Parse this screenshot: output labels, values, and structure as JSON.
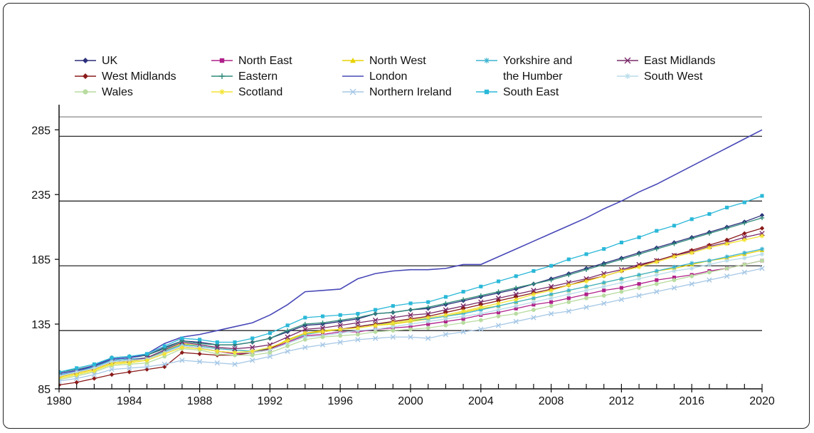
{
  "chart_data": {
    "type": "line",
    "title": "",
    "xlabel": "",
    "ylabel": "",
    "xlim": [
      1980,
      2020
    ],
    "ylim": [
      85,
      300
    ],
    "x_ticks": [
      1980,
      1984,
      1988,
      1992,
      1996,
      2000,
      2004,
      2008,
      2012,
      2016,
      2020
    ],
    "y_ticks": [
      85,
      135,
      185,
      235,
      285
    ],
    "x": [
      1980,
      1981,
      1982,
      1983,
      1984,
      1985,
      1986,
      1987,
      1988,
      1989,
      1990,
      1991,
      1992,
      1993,
      1994,
      1995,
      1996,
      1997,
      1998,
      1999,
      2000,
      2001,
      2002,
      2003,
      2004,
      2005,
      2006,
      2007,
      2008,
      2009,
      2010,
      2011,
      2012,
      2013,
      2014,
      2015,
      2016,
      2017,
      2018,
      2019,
      2020
    ],
    "reference_lines": [
      130,
      180,
      230,
      280,
      295
    ],
    "legend_position": "top",
    "series": [
      {
        "name": "UK",
        "color": "#2b2f7a",
        "marker": "diamond",
        "values": [
          97,
          99,
          102,
          108,
          109,
          111,
          117,
          122,
          121,
          119,
          119,
          121,
          124,
          129,
          134,
          135,
          137,
          139,
          143,
          144,
          146,
          147,
          150,
          153,
          156,
          159,
          162,
          166,
          170,
          174,
          178,
          182,
          186,
          190,
          194,
          198,
          202,
          206,
          210,
          214,
          219
        ]
      },
      {
        "name": "North East",
        "color": "#b0208a",
        "marker": "square",
        "values": [
          95,
          98,
          101,
          106,
          107,
          108,
          113,
          118,
          117,
          114,
          112,
          113,
          115,
          121,
          126,
          127,
          129,
          129,
          131,
          132,
          133,
          135,
          137,
          139,
          142,
          144,
          147,
          150,
          152,
          155,
          158,
          161,
          163,
          166,
          169,
          171,
          173,
          176,
          178,
          181,
          184
        ]
      },
      {
        "name": "North West",
        "color": "#e8d200",
        "marker": "triangle",
        "values": [
          94,
          97,
          100,
          105,
          106,
          108,
          114,
          120,
          118,
          116,
          115,
          114,
          116,
          123,
          128,
          130,
          131,
          132,
          134,
          135,
          137,
          139,
          141,
          144,
          147,
          149,
          152,
          155,
          158,
          161,
          164,
          167,
          170,
          173,
          176,
          178,
          181,
          184,
          186,
          189,
          192
        ]
      },
      {
        "name": "Yorkshire and the Humber",
        "color": "#3bb3d0",
        "marker": "star",
        "values": [
          96,
          98,
          102,
          107,
          108,
          109,
          114,
          119,
          118,
          116,
          115,
          114,
          116,
          122,
          127,
          129,
          131,
          133,
          135,
          136,
          138,
          139,
          141,
          143,
          146,
          149,
          152,
          155,
          158,
          161,
          164,
          167,
          170,
          173,
          176,
          179,
          182,
          184,
          187,
          190,
          193
        ]
      },
      {
        "name": "East Midlands",
        "color": "#7a2b6a",
        "marker": "x",
        "values": [
          95,
          98,
          101,
          106,
          107,
          109,
          115,
          121,
          119,
          117,
          116,
          117,
          119,
          125,
          131,
          132,
          134,
          136,
          138,
          140,
          142,
          143,
          146,
          149,
          152,
          155,
          158,
          161,
          164,
          167,
          170,
          174,
          177,
          181,
          184,
          188,
          191,
          195,
          198,
          202,
          205
        ]
      },
      {
        "name": "West Midlands",
        "color": "#8b1a1a",
        "marker": "diamond",
        "values": [
          88,
          90,
          93,
          96,
          98,
          100,
          102,
          113,
          112,
          111,
          111,
          113,
          116,
          122,
          128,
          129,
          131,
          133,
          135,
          137,
          139,
          141,
          144,
          147,
          150,
          153,
          156,
          159,
          162,
          165,
          169,
          172,
          176,
          180,
          184,
          188,
          192,
          196,
          200,
          205,
          209
        ]
      },
      {
        "name": "Eastern",
        "color": "#2f8a7a",
        "marker": "plus",
        "values": [
          98,
          100,
          103,
          109,
          110,
          111,
          116,
          122,
          120,
          119,
          119,
          121,
          124,
          130,
          135,
          136,
          138,
          140,
          143,
          144,
          146,
          148,
          151,
          154,
          157,
          160,
          163,
          166,
          169,
          173,
          177,
          181,
          185,
          189,
          193,
          197,
          201,
          205,
          209,
          213,
          217
        ]
      },
      {
        "name": "London",
        "color": "#4848b8",
        "marker": "none",
        "values": [
          97,
          99,
          103,
          108,
          109,
          112,
          120,
          125,
          127,
          130,
          133,
          136,
          142,
          150,
          160,
          161,
          162,
          170,
          174,
          176,
          177,
          177,
          178,
          181,
          181,
          187,
          193,
          199,
          205,
          211,
          217,
          224,
          230,
          237,
          243,
          250,
          257,
          264,
          271,
          278,
          285
        ]
      },
      {
        "name": "South West",
        "color": "#b8dcea",
        "marker": "star",
        "values": [
          95,
          98,
          101,
          106,
          107,
          108,
          113,
          118,
          117,
          114,
          113,
          113,
          115,
          120,
          125,
          126,
          128,
          130,
          131,
          133,
          135,
          137,
          139,
          141,
          143,
          146,
          149,
          152,
          155,
          158,
          161,
          164,
          167,
          170,
          173,
          176,
          178,
          181,
          184,
          186,
          189
        ]
      },
      {
        "name": "Wales",
        "color": "#b8dca0",
        "marker": "circle",
        "values": [
          92,
          95,
          98,
          103,
          104,
          105,
          110,
          116,
          115,
          112,
          111,
          111,
          113,
          118,
          123,
          125,
          126,
          127,
          129,
          130,
          131,
          132,
          134,
          136,
          138,
          141,
          143,
          146,
          149,
          152,
          155,
          157,
          160,
          163,
          166,
          169,
          172,
          175,
          178,
          181,
          184
        ]
      },
      {
        "name": "Scotland",
        "color": "#f4e430",
        "marker": "star",
        "values": [
          93,
          96,
          99,
          104,
          105,
          107,
          112,
          117,
          116,
          114,
          113,
          114,
          117,
          122,
          128,
          129,
          131,
          132,
          134,
          136,
          138,
          140,
          142,
          145,
          148,
          151,
          154,
          158,
          161,
          165,
          168,
          172,
          176,
          179,
          183,
          187,
          190,
          194,
          197,
          200,
          203
        ]
      },
      {
        "name": "Northern Ireland",
        "color": "#a6c8e6",
        "marker": "x",
        "values": [
          91,
          93,
          96,
          100,
          101,
          102,
          104,
          107,
          106,
          105,
          104,
          107,
          110,
          114,
          117,
          119,
          121,
          123,
          124,
          125,
          125,
          124,
          127,
          129,
          131,
          134,
          137,
          140,
          143,
          145,
          148,
          151,
          154,
          157,
          160,
          163,
          166,
          169,
          172,
          175,
          178
        ]
      },
      {
        "name": "South East",
        "color": "#2ab8d8",
        "marker": "square",
        "values": [
          98,
          101,
          104,
          109,
          110,
          112,
          118,
          124,
          123,
          121,
          121,
          124,
          128,
          134,
          140,
          141,
          142,
          143,
          146,
          149,
          151,
          152,
          156,
          160,
          164,
          168,
          172,
          176,
          180,
          185,
          189,
          193,
          198,
          202,
          207,
          211,
          216,
          220,
          225,
          229,
          234
        ]
      }
    ]
  }
}
